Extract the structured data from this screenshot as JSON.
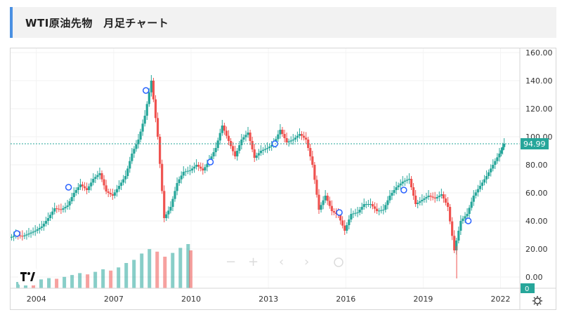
{
  "page": {
    "title": "WTI原油先物　月足チャート"
  },
  "icons": {
    "logo": "tradingview-logo-icon",
    "settings": "gear-icon",
    "controls": [
      "minus-icon",
      "plus-icon",
      "chevron-left-icon",
      "chevron-right-icon",
      "reset-icon"
    ]
  },
  "colors": {
    "up": "#26a69a",
    "down": "#ef5350",
    "price_tag": "#26a69a",
    "accent": "#4a90e2"
  },
  "chart_data": {
    "type": "candlestick",
    "title": "WTI原油先物　月足チャート",
    "y_ticks": [
      "160.00",
      "140.00",
      "120.00",
      "100.00",
      "80.00",
      "60.00",
      "40.00",
      "20.00",
      "0.00"
    ],
    "x_ticks": [
      "2004",
      "2007",
      "2010",
      "2013",
      "2016",
      "2019",
      "2022"
    ],
    "ylim": [
      -8,
      163
    ],
    "xlim": [
      2003.0,
      2022.75
    ],
    "last_price": "94.99",
    "volume_label": "0",
    "grid": true,
    "legend": "none",
    "series": [
      {
        "type": "monthly-close",
        "points": [
          [
            2003.0,
            28
          ],
          [
            2003.25,
            30
          ],
          [
            2003.5,
            29
          ],
          [
            2003.75,
            31
          ],
          [
            2004.0,
            33
          ],
          [
            2004.25,
            36
          ],
          [
            2004.5,
            42
          ],
          [
            2004.75,
            49
          ],
          [
            2005.0,
            48
          ],
          [
            2005.25,
            51
          ],
          [
            2005.5,
            60
          ],
          [
            2005.75,
            66
          ],
          [
            2006.0,
            62
          ],
          [
            2006.25,
            70
          ],
          [
            2006.5,
            74
          ],
          [
            2006.75,
            61
          ],
          [
            2007.0,
            58
          ],
          [
            2007.25,
            65
          ],
          [
            2007.5,
            72
          ],
          [
            2007.75,
            88
          ],
          [
            2008.0,
            98
          ],
          [
            2008.25,
            115
          ],
          [
            2008.5,
            140
          ],
          [
            2008.75,
            100
          ],
          [
            2009.0,
            42
          ],
          [
            2009.25,
            50
          ],
          [
            2009.5,
            67
          ],
          [
            2009.75,
            75
          ],
          [
            2010.0,
            76
          ],
          [
            2010.25,
            80
          ],
          [
            2010.5,
            76
          ],
          [
            2010.75,
            83
          ],
          [
            2011.0,
            92
          ],
          [
            2011.25,
            108
          ],
          [
            2011.5,
            97
          ],
          [
            2011.75,
            86
          ],
          [
            2012.0,
            98
          ],
          [
            2012.25,
            103
          ],
          [
            2012.5,
            85
          ],
          [
            2012.75,
            90
          ],
          [
            2013.0,
            92
          ],
          [
            2013.25,
            95
          ],
          [
            2013.5,
            105
          ],
          [
            2013.75,
            96
          ],
          [
            2014.0,
            98
          ],
          [
            2014.25,
            102
          ],
          [
            2014.5,
            98
          ],
          [
            2014.75,
            80
          ],
          [
            2015.0,
            48
          ],
          [
            2015.25,
            58
          ],
          [
            2015.5,
            47
          ],
          [
            2015.75,
            44
          ],
          [
            2016.0,
            33
          ],
          [
            2016.25,
            45
          ],
          [
            2016.5,
            46
          ],
          [
            2016.75,
            52
          ],
          [
            2017.0,
            52
          ],
          [
            2017.25,
            47
          ],
          [
            2017.5,
            48
          ],
          [
            2017.75,
            58
          ],
          [
            2018.0,
            64
          ],
          [
            2018.25,
            68
          ],
          [
            2018.5,
            70
          ],
          [
            2018.75,
            52
          ],
          [
            2019.0,
            55
          ],
          [
            2019.25,
            58
          ],
          [
            2019.5,
            56
          ],
          [
            2019.75,
            59
          ],
          [
            2020.0,
            50
          ],
          [
            2020.25,
            19
          ],
          [
            2020.5,
            40
          ],
          [
            2020.75,
            45
          ],
          [
            2021.0,
            58
          ],
          [
            2021.25,
            65
          ],
          [
            2021.5,
            72
          ],
          [
            2021.75,
            80
          ],
          [
            2022.0,
            88
          ],
          [
            2022.17,
            95
          ]
        ]
      },
      {
        "type": "event-markers",
        "points": [
          [
            2003.25,
            31
          ],
          [
            2005.25,
            64
          ],
          [
            2008.25,
            133
          ],
          [
            2010.75,
            82
          ],
          [
            2013.25,
            95
          ],
          [
            2015.75,
            46
          ],
          [
            2018.25,
            62
          ],
          [
            2020.75,
            40
          ]
        ]
      }
    ],
    "volume": [
      {
        "x": 2003.3,
        "v": 0.1
      },
      {
        "x": 2003.6,
        "v": 0.12
      },
      {
        "x": 2003.9,
        "v": 0.09
      },
      {
        "x": 2004.2,
        "v": 0.14
      },
      {
        "x": 2004.5,
        "v": 0.16
      },
      {
        "x": 2004.8,
        "v": 0.15
      },
      {
        "x": 2005.1,
        "v": 0.18
      },
      {
        "x": 2005.4,
        "v": 0.21
      },
      {
        "x": 2005.7,
        "v": 0.24
      },
      {
        "x": 2006.0,
        "v": 0.22
      },
      {
        "x": 2006.3,
        "v": 0.26
      },
      {
        "x": 2006.6,
        "v": 0.3
      },
      {
        "x": 2006.9,
        "v": 0.28
      },
      {
        "x": 2007.2,
        "v": 0.33
      },
      {
        "x": 2007.5,
        "v": 0.4
      },
      {
        "x": 2007.8,
        "v": 0.45
      },
      {
        "x": 2008.1,
        "v": 0.55
      },
      {
        "x": 2008.4,
        "v": 0.62
      },
      {
        "x": 2008.7,
        "v": 0.58
      },
      {
        "x": 2009.0,
        "v": 0.5
      },
      {
        "x": 2009.3,
        "v": 0.56
      },
      {
        "x": 2009.6,
        "v": 0.64
      },
      {
        "x": 2009.9,
        "v": 0.7
      },
      {
        "x": 2010.0,
        "v": 0.6
      }
    ]
  }
}
